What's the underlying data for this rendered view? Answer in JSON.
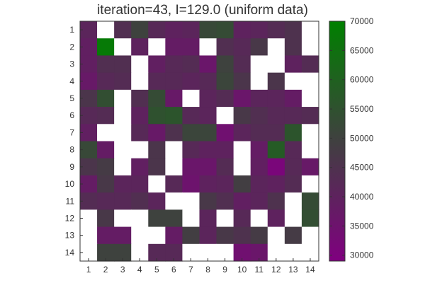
{
  "chart_data": {
    "type": "heatmap",
    "title": "iteration=43, I=129.0 (uniform data)",
    "x_categories": [
      "1",
      "2",
      "3",
      "4",
      "5",
      "6",
      "7",
      "8",
      "9",
      "10",
      "11",
      "12",
      "13",
      "14"
    ],
    "y_categories": [
      "1",
      "2",
      "3",
      "4",
      "5",
      "6",
      "7",
      "8",
      "9",
      "10",
      "11",
      "12",
      "13",
      "14"
    ],
    "values": [
      [
        41000,
        null,
        44000,
        50000,
        42000,
        40000,
        41000,
        52000,
        53000,
        40000,
        41000,
        43000,
        45000,
        null
      ],
      [
        39000,
        68000,
        null,
        40000,
        null,
        38000,
        38000,
        null,
        44000,
        42000,
        47000,
        null,
        45000,
        null
      ],
      [
        39000,
        44000,
        44000,
        null,
        39000,
        42000,
        43000,
        36000,
        50000,
        43000,
        null,
        null,
        40000,
        43000
      ],
      [
        37000,
        42000,
        43000,
        null,
        42000,
        42000,
        41000,
        42000,
        51000,
        46000,
        null,
        46000,
        null,
        null
      ],
      [
        46000,
        54000,
        null,
        44000,
        53000,
        37000,
        null,
        41000,
        43000,
        36000,
        41000,
        41000,
        38000,
        null
      ],
      [
        42000,
        43000,
        null,
        40000,
        55000,
        56000,
        42000,
        41000,
        null,
        47000,
        44000,
        42000,
        42000,
        43000
      ],
      [
        39000,
        null,
        null,
        42000,
        37000,
        45000,
        51000,
        51000,
        34000,
        41000,
        43000,
        43000,
        56000,
        null
      ],
      [
        52000,
        38000,
        null,
        null,
        46000,
        null,
        42000,
        40000,
        40000,
        null,
        38000,
        58000,
        42000,
        null
      ],
      [
        46000,
        48000,
        null,
        39000,
        46000,
        null,
        36000,
        36000,
        43000,
        null,
        39000,
        31000,
        42000,
        37000
      ],
      [
        38000,
        47000,
        41000,
        41000,
        null,
        42000,
        35000,
        40000,
        41000,
        49000,
        41000,
        40000,
        43000,
        null
      ],
      [
        43000,
        42000,
        42000,
        44000,
        41000,
        null,
        null,
        47000,
        44000,
        39000,
        41000,
        45000,
        null,
        53000
      ],
      [
        null,
        47000,
        null,
        null,
        50000,
        50000,
        null,
        41000,
        null,
        42000,
        null,
        40000,
        null,
        54000
      ],
      [
        null,
        38000,
        38000,
        null,
        null,
        38000,
        49000,
        41000,
        47000,
        45000,
        48000,
        null,
        48000,
        null
      ],
      [
        null,
        50000,
        50000,
        null,
        42000,
        42000,
        null,
        null,
        null,
        34000,
        36000,
        null,
        null,
        null
      ]
    ],
    "colorbar": {
      "min": 29000,
      "max": 70000,
      "ticks": [
        30000,
        35000,
        40000,
        45000,
        50000,
        55000,
        60000,
        65000,
        70000
      ],
      "tick_labels": [
        "30000",
        "35000",
        "40000",
        "45000",
        "50000",
        "55000",
        "60000",
        "65000",
        "70000"
      ],
      "colors": {
        "low": "#800080",
        "mid": "#404040",
        "high": "#008000"
      }
    },
    "missing_color": "#ffffff"
  }
}
